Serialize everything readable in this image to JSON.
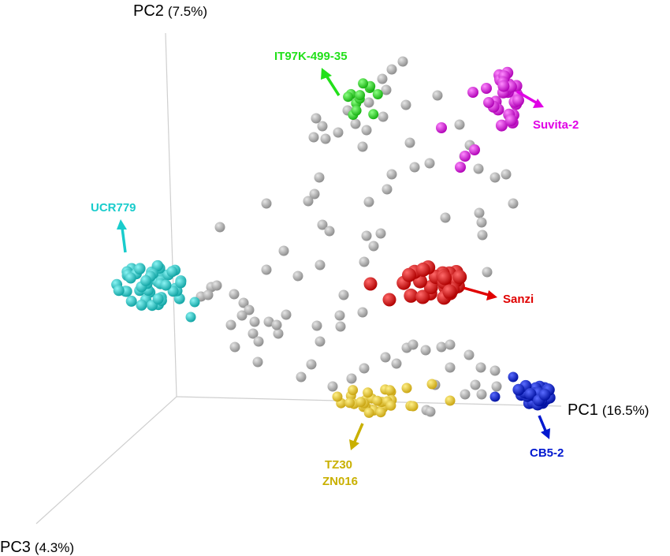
{
  "chart_data": {
    "type": "scatter",
    "dimensions": 3,
    "axes": {
      "x": {
        "name": "PC1",
        "variance": "(16.5%)"
      },
      "y": {
        "name": "PC2",
        "variance": "(7.5%)"
      },
      "z": {
        "name": "PC3",
        "variance": "(4.3%)"
      }
    },
    "grid": false,
    "legend": "none",
    "colors": {
      "background_points": "#a8a8a8",
      "IT97K-499-35": "#22e01a",
      "Suvita-2": "#e000e6",
      "UCR779": "#19cccc",
      "Sanzi": "#e00000",
      "CB5-2": "#0018d0",
      "TZ30_ZN016": "#e6c41e"
    },
    "labels": {
      "it97k": "IT97K-499-35",
      "suvita": "Suvita-2",
      "ucr779": "UCR779",
      "sanzi": "Sanzi",
      "cb52": "CB5-2",
      "tz30": "TZ30",
      "zn016": "ZN016"
    },
    "highlighted_groups": [
      {
        "name": "IT97K-499-35",
        "color": "#22e01a",
        "labels": [
          "IT97K-499-35"
        ]
      },
      {
        "name": "Suvita-2",
        "color": "#e000e6",
        "labels": [
          "Suvita-2"
        ]
      },
      {
        "name": "UCR779",
        "color": "#19cccc",
        "labels": [
          "UCR779"
        ]
      },
      {
        "name": "Sanzi",
        "color": "#e00000",
        "labels": [
          "Sanzi"
        ]
      },
      {
        "name": "CB5-2",
        "color": "#0018d0",
        "labels": [
          "CB5-2"
        ]
      },
      {
        "name": "TZ30 / ZN016",
        "color": "#e6c41e",
        "labels": [
          "TZ30",
          "ZN016"
        ]
      }
    ]
  }
}
